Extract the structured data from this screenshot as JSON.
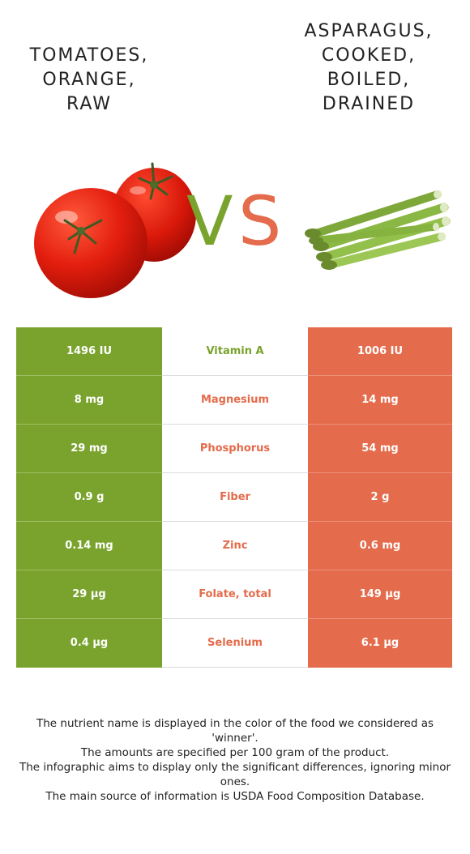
{
  "food_left": {
    "title": "TOMATOES, ORANGE, RAW",
    "color": "#7aa32d",
    "image_icon": "tomato-illustration"
  },
  "food_right": {
    "title": "ASPARAGUS, COOKED, BOILED, DRAINED",
    "color": "#e46b4b",
    "image_icon": "asparagus-illustration"
  },
  "vs": {
    "v": "V",
    "s": "S",
    "v_color": "#7aa32d",
    "s_color": "#e46b4b"
  },
  "nutrients": [
    {
      "name": "Vitamin A",
      "left": "1496 IU",
      "right": "1006 IU",
      "winner": "left",
      "color": "#7aa32d"
    },
    {
      "name": "Magnesium",
      "left": "8 mg",
      "right": "14 mg",
      "winner": "right",
      "color": "#e46b4b"
    },
    {
      "name": "Phosphorus",
      "left": "29 mg",
      "right": "54 mg",
      "winner": "right",
      "color": "#e46b4b"
    },
    {
      "name": "Fiber",
      "left": "0.9 g",
      "right": "2 g",
      "winner": "right",
      "color": "#e46b4b"
    },
    {
      "name": "Zinc",
      "left": "0.14 mg",
      "right": "0.6 mg",
      "winner": "right",
      "color": "#e46b4b"
    },
    {
      "name": "Folate, total",
      "left": "29 µg",
      "right": "149 µg",
      "winner": "right",
      "color": "#e46b4b"
    },
    {
      "name": "Selenium",
      "left": "0.4 µg",
      "right": "6.1 µg",
      "winner": "right",
      "color": "#e46b4b"
    }
  ],
  "footnote": [
    "The nutrient name is displayed in the color of the food we considered as 'winner'.",
    "The amounts are specified per 100 gram of the product.",
    "The infographic aims to display only the significant differences, ignoring minor ones.",
    "The main source of information is USDA Food Composition Database."
  ]
}
